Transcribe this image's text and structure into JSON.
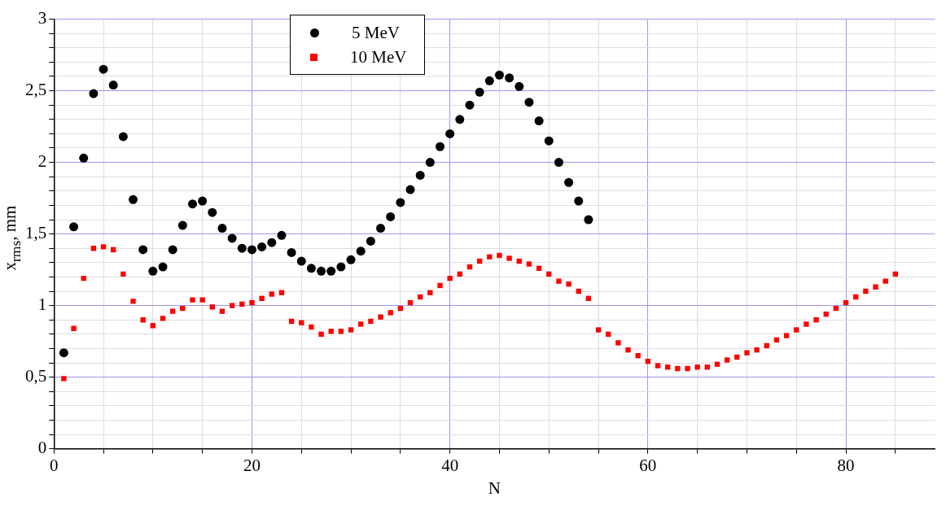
{
  "chart_data": {
    "type": "scatter",
    "xlabel": "N",
    "ylabel": "x$_{rms}$, mm",
    "legend": "top",
    "grid": true,
    "xlim": [
      0,
      89
    ],
    "xticks": [
      0,
      {
        "value": 5,
        "label": null
      },
      {
        "value": 10,
        "label": null
      },
      {
        "value": 15,
        "label": null
      },
      20,
      {
        "value": 25,
        "label": null
      },
      {
        "value": 30,
        "label": null
      },
      {
        "value": 35,
        "label": null
      },
      40,
      {
        "value": 45,
        "label": null
      },
      {
        "value": 50,
        "label": null
      },
      {
        "value": 55,
        "label": null
      },
      60,
      {
        "value": 65,
        "label": null
      },
      {
        "value": 70,
        "label": null
      },
      {
        "value": 75,
        "label": null
      },
      80,
      {
        "value": 85,
        "label": null
      }
    ],
    "ylim": [
      0,
      3
    ],
    "yticks": [
      0,
      {
        "value": 0.1,
        "label": null
      },
      {
        "value": 0.2,
        "label": null
      },
      {
        "value": 0.3,
        "label": null
      },
      {
        "value": 0.4,
        "label": null
      },
      {
        "value": 0.5,
        "label": "0,5"
      },
      {
        "value": 0.6,
        "label": null
      },
      {
        "value": 0.7,
        "label": null
      },
      {
        "value": 0.8,
        "label": null
      },
      {
        "value": 0.9,
        "label": null
      },
      1,
      {
        "value": 1.1,
        "label": null
      },
      {
        "value": 1.2,
        "label": null
      },
      {
        "value": 1.3,
        "label": null
      },
      {
        "value": 1.4,
        "label": null
      },
      {
        "value": 1.5,
        "label": "1,5"
      },
      {
        "value": 1.6,
        "label": null
      },
      {
        "value": 1.7,
        "label": null
      },
      {
        "value": 1.8,
        "label": null
      },
      {
        "value": 1.9,
        "label": null
      },
      2,
      {
        "value": 2.1,
        "label": null
      },
      {
        "value": 2.2,
        "label": null
      },
      {
        "value": 2.3,
        "label": null
      },
      {
        "value": 2.4,
        "label": null
      },
      {
        "value": 2.5,
        "label": "2,5"
      },
      {
        "value": 2.6,
        "label": null
      },
      {
        "value": 2.7,
        "label": null
      },
      {
        "value": 2.8,
        "label": null
      },
      {
        "value": 2.9,
        "label": null
      },
      3
    ],
    "series": [
      {
        "name": "5 MeV",
        "color": "#000000",
        "marker": "circle",
        "x": [
          1,
          2,
          3,
          4,
          5,
          6,
          7,
          8,
          9,
          10,
          11,
          12,
          13,
          14,
          15,
          16,
          17,
          18,
          19,
          20,
          21,
          22,
          23,
          24,
          25,
          26,
          27,
          28,
          29,
          30,
          31,
          32,
          33,
          34,
          35,
          36,
          37,
          38,
          39,
          40,
          41,
          42,
          43,
          44,
          45,
          46,
          47,
          48,
          49,
          50,
          51,
          52,
          53,
          54
        ],
        "values": [
          0.67,
          1.55,
          2.03,
          2.48,
          2.65,
          2.54,
          2.18,
          1.74,
          1.39,
          1.24,
          1.27,
          1.39,
          1.56,
          1.71,
          1.73,
          1.65,
          1.54,
          1.47,
          1.4,
          1.39,
          1.41,
          1.44,
          1.49,
          1.37,
          1.31,
          1.26,
          1.24,
          1.24,
          1.27,
          1.32,
          1.38,
          1.45,
          1.54,
          1.62,
          1.72,
          1.81,
          1.91,
          2.0,
          2.11,
          2.2,
          2.3,
          2.4,
          2.49,
          2.57,
          2.61,
          2.59,
          2.53,
          2.42,
          2.29,
          2.15,
          2.0,
          1.86,
          1.73,
          1.6
        ]
      },
      {
        "name": "10 MeV",
        "color": "#ff0000",
        "marker": "square",
        "x": [
          1,
          2,
          3,
          4,
          5,
          6,
          7,
          8,
          9,
          10,
          11,
          12,
          13,
          14,
          15,
          16,
          17,
          18,
          19,
          20,
          21,
          22,
          23,
          24,
          25,
          26,
          27,
          28,
          29,
          30,
          31,
          32,
          33,
          34,
          35,
          36,
          37,
          38,
          39,
          40,
          41,
          42,
          43,
          44,
          45,
          46,
          47,
          48,
          49,
          50,
          51,
          52,
          53,
          54,
          55,
          56,
          57,
          58,
          59,
          60,
          61,
          62,
          63,
          64,
          65,
          66,
          67,
          68,
          69,
          70,
          71,
          72,
          73,
          74,
          75,
          76,
          77,
          78,
          79,
          80,
          81,
          82,
          83,
          84,
          85
        ],
        "values": [
          0.49,
          0.84,
          1.19,
          1.4,
          1.41,
          1.39,
          1.22,
          1.03,
          0.9,
          0.86,
          0.91,
          0.96,
          0.98,
          1.04,
          1.04,
          0.99,
          0.96,
          1.0,
          1.01,
          1.02,
          1.05,
          1.08,
          1.09,
          0.89,
          0.88,
          0.85,
          0.8,
          0.82,
          0.82,
          0.83,
          0.87,
          0.89,
          0.92,
          0.95,
          0.98,
          1.02,
          1.06,
          1.09,
          1.14,
          1.19,
          1.22,
          1.27,
          1.31,
          1.34,
          1.35,
          1.33,
          1.31,
          1.29,
          1.26,
          1.22,
          1.17,
          1.15,
          1.1,
          1.05,
          0.83,
          0.8,
          0.74,
          0.69,
          0.65,
          0.61,
          0.58,
          0.57,
          0.56,
          0.56,
          0.57,
          0.57,
          0.59,
          0.62,
          0.64,
          0.67,
          0.69,
          0.72,
          0.76,
          0.79,
          0.83,
          0.87,
          0.9,
          0.94,
          0.98,
          1.02,
          1.06,
          1.1,
          1.13,
          1.17,
          1.22
        ]
      }
    ]
  }
}
